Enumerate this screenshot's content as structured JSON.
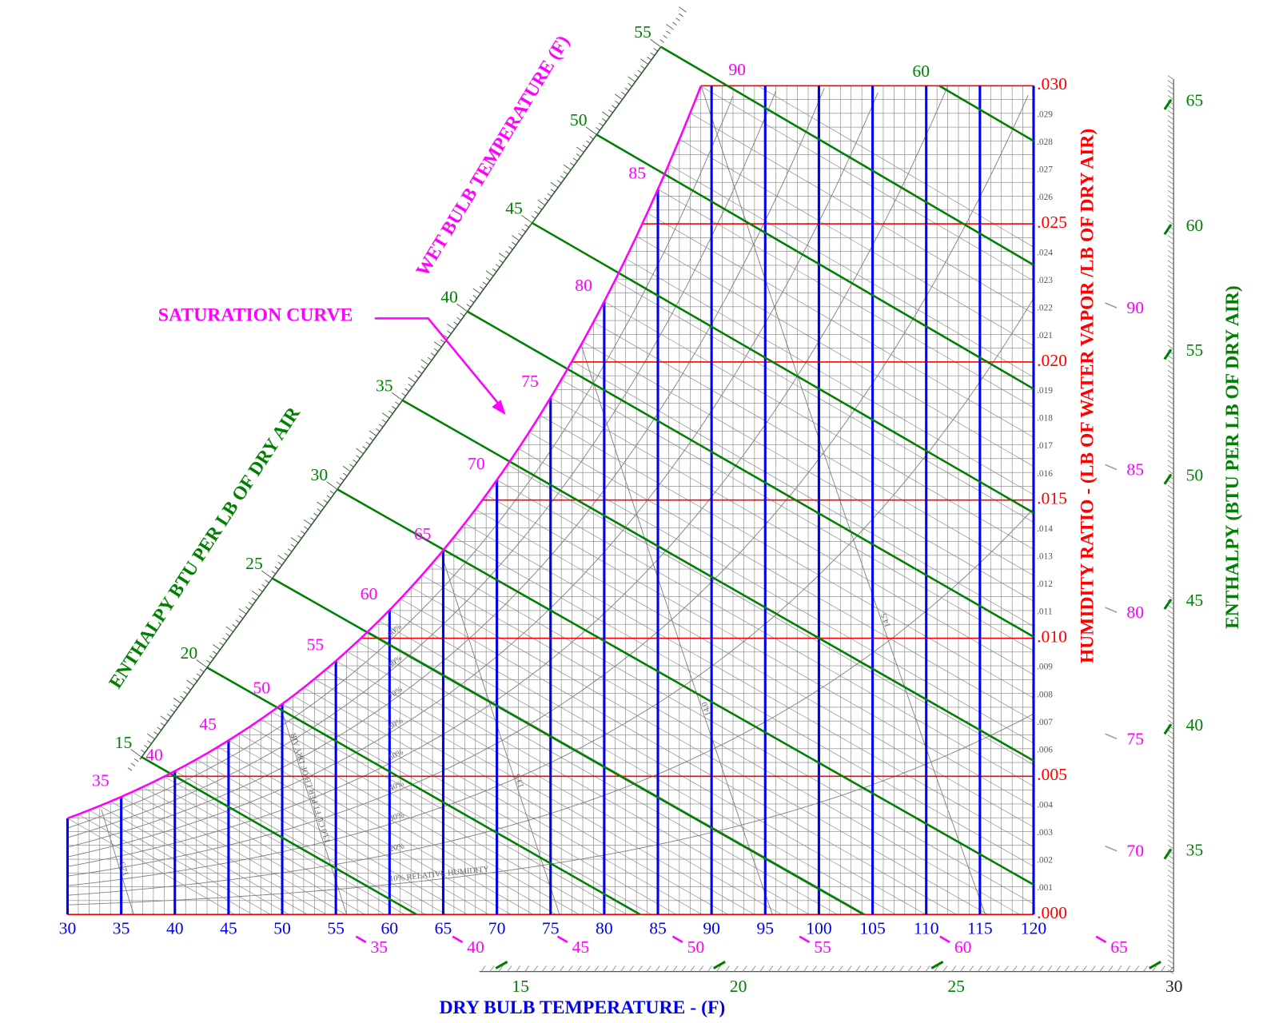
{
  "chart_data": {
    "type": "psychrometric",
    "x_label": "DRY BULB TEMPERATURE - (F)",
    "y_label": "HUMIDITY RATIO - (LB OF WATER VAPOR /LB OF DRY AIR)",
    "enthalpy_label": "ENTHALPY (BTU PER LB OF DRY AIR)",
    "enthalpy_diagonal_label": "ENTHALPY BTU PER LB OF DRY AIR",
    "wet_bulb_label": "WET BULB TEMPERATURE (F)",
    "saturation_label": "SATURATION CURVE",
    "xlim": [
      30,
      120
    ],
    "xticks": [
      30,
      35,
      40,
      45,
      50,
      55,
      60,
      65,
      70,
      75,
      80,
      85,
      90,
      95,
      100,
      105,
      110,
      115,
      120
    ],
    "ylim": [
      0,
      0.03
    ],
    "yticks": [
      {
        "value": 0,
        "label": ".000"
      },
      {
        "value": 0.001,
        "label": ".001"
      },
      {
        "value": 0.002,
        "label": ".002"
      },
      {
        "value": 0.003,
        "label": ".003"
      },
      {
        "value": 0.004,
        "label": ".004"
      },
      {
        "value": 0.005,
        "label": ".005"
      },
      {
        "value": 0.006,
        "label": ".006"
      },
      {
        "value": 0.007,
        "label": ".007"
      },
      {
        "value": 0.008,
        "label": ".008"
      },
      {
        "value": 0.009,
        "label": ".009"
      },
      {
        "value": 0.01,
        "label": ".010"
      },
      {
        "value": 0.011,
        "label": ".011"
      },
      {
        "value": 0.012,
        "label": ".012"
      },
      {
        "value": 0.013,
        "label": ".013"
      },
      {
        "value": 0.014,
        "label": ".014"
      },
      {
        "value": 0.015,
        "label": ".015"
      },
      {
        "value": 0.016,
        "label": ".016"
      },
      {
        "value": 0.017,
        "label": ".017"
      },
      {
        "value": 0.018,
        "label": ".018"
      },
      {
        "value": 0.019,
        "label": ".019"
      },
      {
        "value": 0.02,
        "label": ".020"
      },
      {
        "value": 0.021,
        "label": ".021"
      },
      {
        "value": 0.022,
        "label": ".022"
      },
      {
        "value": 0.023,
        "label": ".023"
      },
      {
        "value": 0.024,
        "label": ".024"
      },
      {
        "value": 0.025,
        "label": ".025"
      },
      {
        "value": 0.026,
        "label": ".026"
      },
      {
        "value": 0.027,
        "label": ".027"
      },
      {
        "value": 0.028,
        "label": ".028"
      },
      {
        "value": 0.029,
        "label": ".029"
      },
      {
        "value": 0.03,
        "label": ".030"
      }
    ],
    "enthalpy_lines": [
      15,
      20,
      25,
      30,
      35,
      40,
      45,
      50,
      55,
      60
    ],
    "wet_bulb_labels": [
      35,
      40,
      45,
      50,
      55,
      60,
      65,
      70,
      75,
      80,
      85,
      90
    ],
    "enthalpy_scale_ticks": [
      15,
      20,
      25,
      30,
      35,
      40,
      45,
      50,
      55,
      60,
      65
    ],
    "wet_bulb_scale_ticks": [
      35,
      40,
      45,
      50,
      55,
      60,
      65,
      70,
      75,
      80,
      85,
      90
    ],
    "rh_curves": [
      {
        "value": 10,
        "label": "10% RELATIVE HUMIDITY"
      },
      {
        "value": 20,
        "label": "20%"
      },
      {
        "value": 30,
        "label": "30%"
      },
      {
        "value": 40,
        "label": "40%"
      },
      {
        "value": 50,
        "label": "50%"
      },
      {
        "value": 60,
        "label": "60%"
      },
      {
        "value": 70,
        "label": "70%"
      },
      {
        "value": 80,
        "label": "80%"
      },
      {
        "value": 90,
        "label": "90%"
      }
    ],
    "volume_lines": [
      {
        "value": 12.5,
        "label": "12.5"
      },
      {
        "value": 13,
        "label": "13.0 CU FT PER LB OF DRY AIR"
      },
      {
        "value": 13.5,
        "label": "13.5"
      },
      {
        "value": 14,
        "label": "14.0"
      },
      {
        "value": 14.5,
        "label": "14.5"
      }
    ],
    "grid": true,
    "colors": {
      "dry_bulb": "#0000ee",
      "humidity_ratio": "#ff0000",
      "enthalpy": "#008000",
      "wet_bulb": "#ff00ff",
      "grid": "#808080"
    }
  }
}
